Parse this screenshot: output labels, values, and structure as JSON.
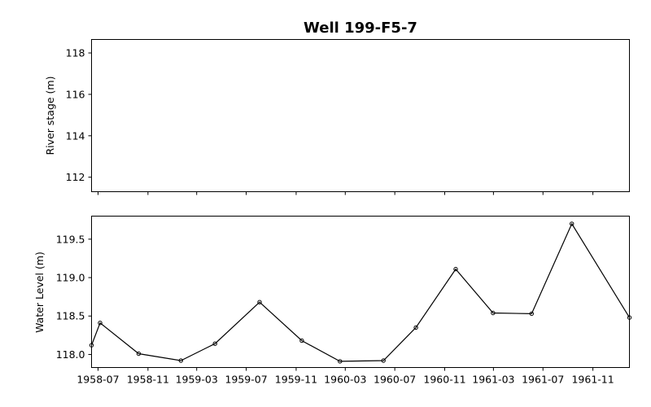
{
  "chart_data": [
    {
      "type": "line",
      "title": "Well 199-F5-7",
      "ylabel": "River stage (m)",
      "xlim": [
        "1958-06-15",
        "1962-01-30"
      ],
      "ylim": [
        111.3,
        118.65
      ],
      "yticks": [
        112,
        114,
        116,
        118
      ],
      "xtick_labels_shown": false,
      "series": []
    },
    {
      "type": "line",
      "ylabel": "Water Level (m)",
      "xlim": [
        "1958-06-15",
        "1962-01-30"
      ],
      "ylim": [
        117.83,
        119.8
      ],
      "yticks": [
        118.0,
        118.5,
        119.0,
        119.5
      ],
      "xticks": [
        "1958-07",
        "1958-11",
        "1959-03",
        "1959-07",
        "1959-11",
        "1960-03",
        "1960-07",
        "1960-11",
        "1961-03",
        "1961-07",
        "1961-11"
      ],
      "series": [
        {
          "marker": "circle",
          "color": "#000000",
          "x": [
            "1958-06-15",
            "1958-07-06",
            "1958-10-09",
            "1959-01-21",
            "1959-04-15",
            "1959-08-03",
            "1959-11-15",
            "1960-02-17",
            "1960-06-03",
            "1960-08-22",
            "1960-11-28",
            "1961-02-28",
            "1961-06-03",
            "1961-09-10",
            "1962-01-30"
          ],
          "y": [
            118.12,
            118.41,
            118.01,
            117.92,
            118.14,
            118.68,
            118.18,
            117.91,
            117.92,
            118.35,
            119.11,
            118.54,
            118.53,
            119.7,
            118.48
          ]
        }
      ]
    }
  ]
}
